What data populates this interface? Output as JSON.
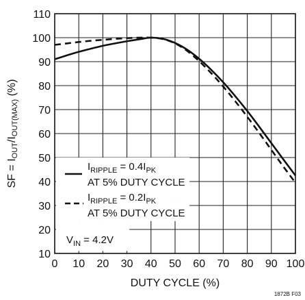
{
  "chart_data": {
    "type": "line",
    "xlabel": "DUTY CYCLE (%)",
    "ylabel": "SF = I_OUT/I_OUT(MAX) (%)",
    "ylabel_parts": {
      "prefix": "SF = I",
      "sub1": "OUT",
      "mid": "/I",
      "sub2": "OUT(MAX)",
      "suffix": " (%)"
    },
    "xlim": [
      0,
      100
    ],
    "ylim": [
      10,
      110
    ],
    "x_ticks": [
      0,
      10,
      20,
      30,
      40,
      50,
      60,
      70,
      80,
      90,
      100
    ],
    "y_ticks": [
      10,
      20,
      30,
      40,
      50,
      60,
      70,
      80,
      90,
      100,
      110
    ],
    "grid": true,
    "legend_placement": "bottom-left",
    "series": [
      {
        "style": "solid",
        "label": {
          "main": "I",
          "sub1": "RIPPLE",
          "mid": " = 0.4I",
          "sub2": "PK",
          "line2": "AT 5% DUTY CYCLE"
        },
        "x": [
          0,
          5,
          10,
          15,
          20,
          25,
          30,
          35,
          40,
          45,
          50,
          55,
          60,
          65,
          70,
          75,
          80,
          85,
          90,
          95,
          100
        ],
        "y": [
          91,
          92.6,
          94.1,
          95.4,
          96.6,
          97.6,
          98.5,
          99.3,
          100,
          99.5,
          97.8,
          95,
          91.2,
          86.6,
          81.4,
          75.6,
          69.4,
          62.8,
          56,
          49.2,
          42.5
        ]
      },
      {
        "style": "dashed",
        "label": {
          "main": "I",
          "sub1": "RIPPLE",
          "mid": " = 0.2I",
          "sub2": "PK",
          "line2": "AT 5% DUTY CYCLE"
        },
        "x": [
          0,
          5,
          10,
          15,
          20,
          25,
          30,
          35,
          40,
          45,
          50,
          55,
          60,
          65,
          70,
          75,
          80,
          85,
          90,
          95,
          100
        ],
        "y": [
          97,
          97.6,
          98.2,
          98.7,
          99.1,
          99.5,
          99.8,
          100,
          100,
          99.4,
          97.6,
          94.5,
          90.2,
          85.2,
          79.6,
          73.5,
          67,
          60.2,
          53.2,
          46.2,
          39.5
        ]
      }
    ],
    "annotation": {
      "main": "V",
      "sub": "IN",
      "rest": " = 4.2V"
    }
  },
  "figure_id": "1872B F03"
}
